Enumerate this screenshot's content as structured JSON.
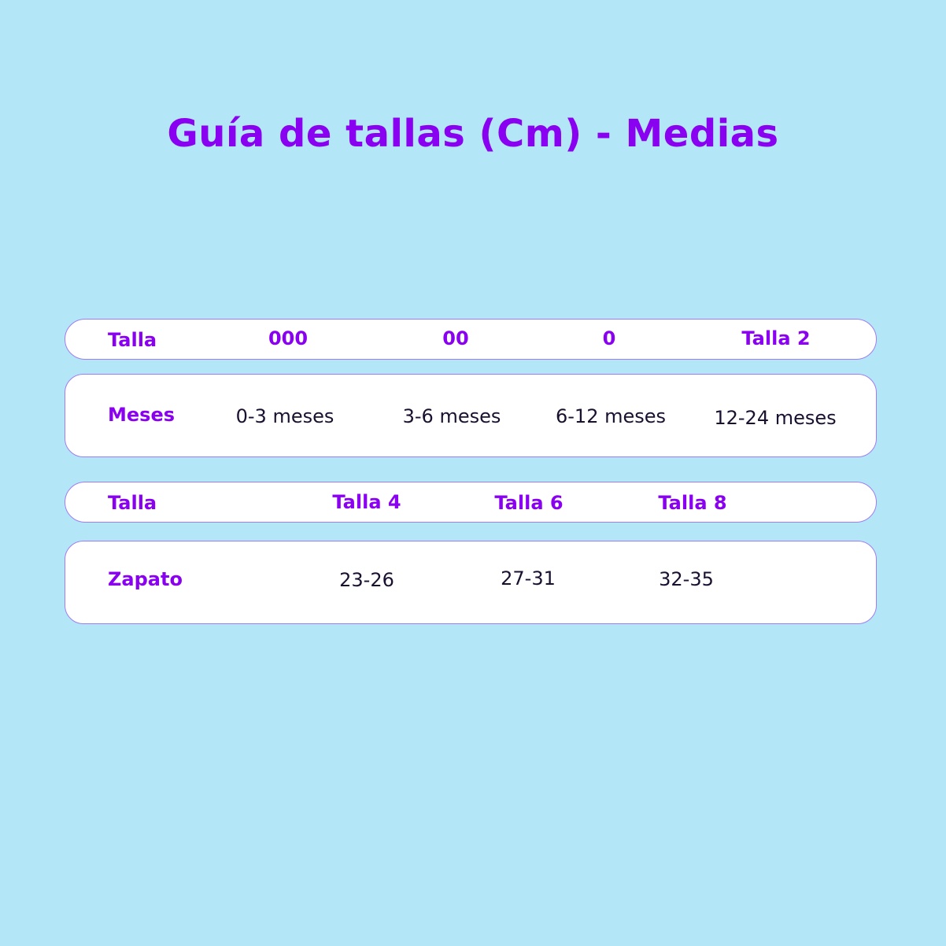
{
  "title": "Guía de tallas (Cm) - Medias",
  "table1": {
    "header": [
      "Talla",
      "000",
      "00",
      "0",
      "Talla 2"
    ],
    "row": [
      "Meses",
      "0-3 meses",
      "3-6 meses",
      "6-12 meses",
      "12-24 meses"
    ]
  },
  "table2": {
    "header": [
      "Talla",
      "Talla 4",
      "Talla 6",
      "Talla 8"
    ],
    "row": [
      "Zapato",
      "23-26",
      "27-31",
      "32-35"
    ]
  },
  "colors": {
    "background": "#b3e7f7",
    "accent": "#8a00f0",
    "text": "#1a1030"
  }
}
